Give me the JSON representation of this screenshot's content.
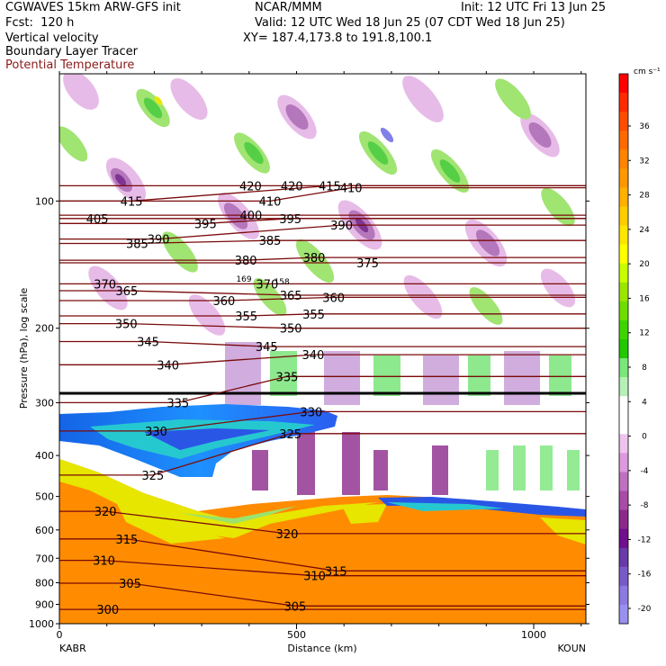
{
  "header": {
    "title": "CGWAVES 15km ARW-GFS init",
    "forecast": "Fcst:  120 h",
    "field1": "Vertical velocity",
    "field2": "Boundary Layer Tracer",
    "field3": "Potential Temperature",
    "center": "NCAR/MMM",
    "valid": "Valid: 12 UTC Wed 18 Jun 25 (07 CDT Wed 18 Jun 25)",
    "xy": "XY= 187.4,173.8 to 191.8,100.1",
    "init": "Init: 12 UTC Fri 13 Jun 25"
  },
  "chart_data": {
    "type": "heatmap",
    "xlabel": "Distance (km)",
    "ylabel": "Pressure (hPa), log scale",
    "xlim": [
      0,
      1110
    ],
    "ylim": [
      1000,
      50
    ],
    "log_y": true,
    "x_ticks": [
      0,
      500,
      1000
    ],
    "y_ticks": [
      100,
      200,
      300,
      400,
      500,
      600,
      700,
      800,
      900,
      1000
    ],
    "x_end_labels": [
      "KABR",
      "KOUN"
    ],
    "colorbar": {
      "units": "cm s⁻¹",
      "labels": [
        36,
        32,
        28,
        24,
        20,
        16,
        12,
        8,
        4,
        0,
        -4,
        -8,
        -12,
        -16,
        -20
      ],
      "colors": [
        "#ff0000",
        "#ff2a00",
        "#ff4c00",
        "#ff6a00",
        "#ff8400",
        "#ff9800",
        "#ffb000",
        "#ffcc00",
        "#ffe600",
        "#ffff00",
        "#c8ff00",
        "#9be600",
        "#6edd00",
        "#3fd400",
        "#22c800",
        "#7be67b",
        "#b6f0b6",
        "#ffffff",
        "#ffffff",
        "#eec4ee",
        "#dd99dd",
        "#c070c0",
        "#a84ca8",
        "#8c2a8c",
        "#70108c",
        "#6a3aa8",
        "#7a5ac8",
        "#8c7ae0",
        "#9a90f0"
      ]
    },
    "theta_labels": [
      {
        "v": "420",
        "x": 403,
        "p": 92
      },
      {
        "v": "420",
        "x": 490,
        "p": 92
      },
      {
        "v": "415",
        "x": 570,
        "p": 92
      },
      {
        "v": "410",
        "x": 615,
        "p": 93
      },
      {
        "v": "415",
        "x": 152,
        "p": 100
      },
      {
        "v": "410",
        "x": 444,
        "p": 100
      },
      {
        "v": "405",
        "x": 80,
        "p": 110
      },
      {
        "v": "400",
        "x": 404,
        "p": 108
      },
      {
        "v": "395",
        "x": 308,
        "p": 113
      },
      {
        "v": "395",
        "x": 487,
        "p": 110
      },
      {
        "v": "390",
        "x": 209,
        "p": 123
      },
      {
        "v": "390",
        "x": 595,
        "p": 114
      },
      {
        "v": "385",
        "x": 164,
        "p": 126
      },
      {
        "v": "385",
        "x": 444,
        "p": 124
      },
      {
        "v": "380",
        "x": 393,
        "p": 138
      },
      {
        "v": "380",
        "x": 537,
        "p": 136
      },
      {
        "v": "375",
        "x": 650,
        "p": 140
      },
      {
        "v": "370",
        "x": 96,
        "p": 157
      },
      {
        "v": "370",
        "x": 438,
        "p": 157
      },
      {
        "v": "365",
        "x": 142,
        "p": 163
      },
      {
        "v": "365",
        "x": 488,
        "p": 167
      },
      {
        "v": "360",
        "x": 347,
        "p": 172
      },
      {
        "v": "360",
        "x": 578,
        "p": 169
      },
      {
        "v": "355",
        "x": 394,
        "p": 187
      },
      {
        "v": "355",
        "x": 536,
        "p": 185
      },
      {
        "v": "350",
        "x": 141,
        "p": 195
      },
      {
        "v": "350",
        "x": 488,
        "p": 200
      },
      {
        "v": "345",
        "x": 187,
        "p": 215
      },
      {
        "v": "345",
        "x": 437,
        "p": 221
      },
      {
        "v": "340",
        "x": 229,
        "p": 244
      },
      {
        "v": "340",
        "x": 535,
        "p": 231
      },
      {
        "v": "335",
        "x": 250,
        "p": 300
      },
      {
        "v": "335",
        "x": 480,
        "p": 260
      },
      {
        "v": "330",
        "x": 204,
        "p": 350
      },
      {
        "v": "330",
        "x": 531,
        "p": 315
      },
      {
        "v": "325",
        "x": 197,
        "p": 445
      },
      {
        "v": "325",
        "x": 487,
        "p": 355
      },
      {
        "v": "320",
        "x": 97,
        "p": 542
      },
      {
        "v": "320",
        "x": 480,
        "p": 612
      },
      {
        "v": "315",
        "x": 142,
        "p": 630
      },
      {
        "v": "315",
        "x": 583,
        "p": 750
      },
      {
        "v": "310",
        "x": 94,
        "p": 708
      },
      {
        "v": "310",
        "x": 538,
        "p": 770
      },
      {
        "v": "305",
        "x": 149,
        "p": 802
      },
      {
        "v": "305",
        "x": 497,
        "p": 908
      },
      {
        "v": "300",
        "x": 102,
        "p": 925
      }
    ],
    "mini_labels": [
      {
        "v": "169",
        "x": 389,
        "p": 153
      },
      {
        "v": "158",
        "x": 469,
        "p": 155
      }
    ]
  }
}
